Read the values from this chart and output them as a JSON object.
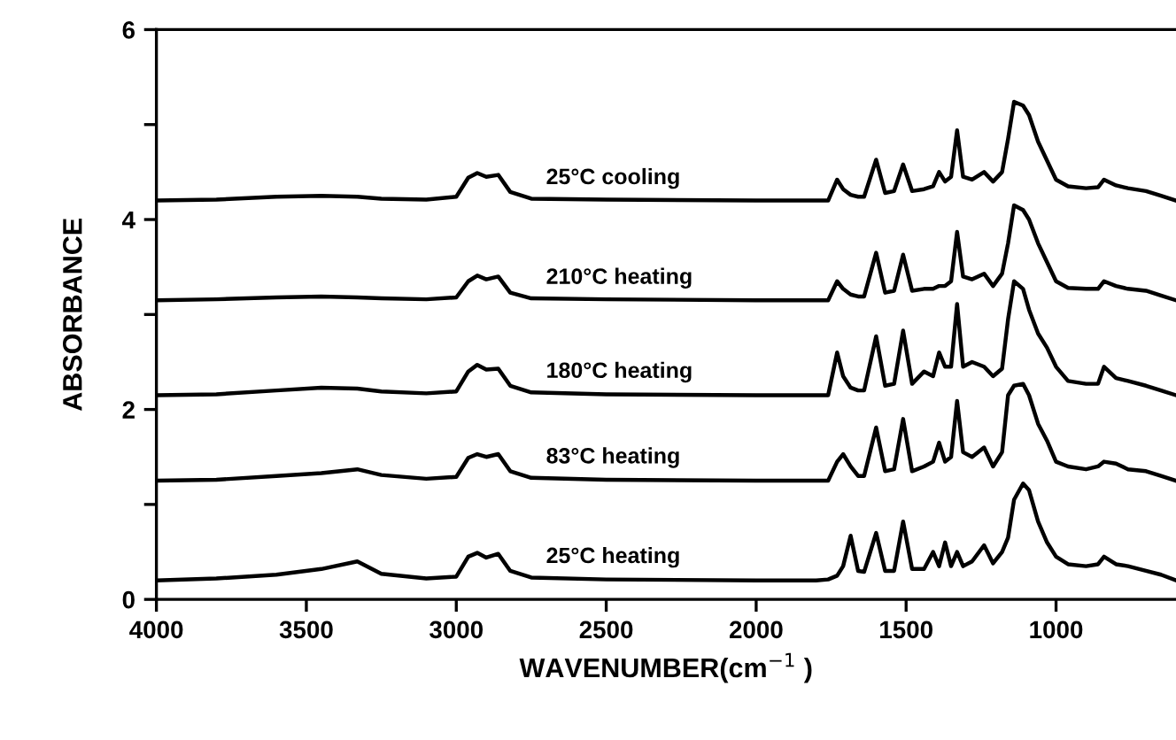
{
  "chart_data": {
    "type": "line",
    "xlabel": "WAVENUMBER(cm$^{−1}$ )",
    "ylabel": "ABSORBANCE",
    "xlim": [
      4000,
      600
    ],
    "ylim": [
      0,
      6
    ],
    "xticks": [
      4000,
      3500,
      3000,
      2500,
      2000,
      1500,
      1000
    ],
    "yticks": [
      0,
      {
        "value": 1,
        "label": null
      },
      2,
      {
        "value": 3,
        "label": null
      },
      4,
      {
        "value": 5,
        "label": null
      },
      6
    ],
    "grid": false,
    "line_style": "solid",
    "x": [
      4000,
      3800,
      3600,
      3450,
      3330,
      3250,
      3100,
      3000,
      2960,
      2930,
      2900,
      2860,
      2820,
      2750,
      2500,
      2000,
      1800,
      1760,
      1730,
      1710,
      1685,
      1660,
      1640,
      1600,
      1570,
      1540,
      1510,
      1480,
      1440,
      1410,
      1390,
      1370,
      1350,
      1330,
      1310,
      1280,
      1240,
      1210,
      1180,
      1160,
      1140,
      1110,
      1090,
      1060,
      1030,
      1000,
      960,
      900,
      860,
      840,
      800,
      760,
      700,
      650,
      600
    ],
    "series": [
      {
        "name": "25°C cooling",
        "color": "#000000",
        "values": [
          4.2,
          4.21,
          4.24,
          4.25,
          4.24,
          4.22,
          4.21,
          4.24,
          4.44,
          4.49,
          4.45,
          4.47,
          4.29,
          4.22,
          4.21,
          4.2,
          4.2,
          4.2,
          4.42,
          4.32,
          4.26,
          4.24,
          4.24,
          4.63,
          4.28,
          4.3,
          4.58,
          4.3,
          4.32,
          4.35,
          4.5,
          4.4,
          4.45,
          4.94,
          4.45,
          4.42,
          4.5,
          4.4,
          4.5,
          4.85,
          5.24,
          5.2,
          5.1,
          4.82,
          4.62,
          4.42,
          4.35,
          4.33,
          4.34,
          4.42,
          4.36,
          4.33,
          4.3,
          4.25,
          4.2
        ]
      },
      {
        "name": "210°C heating",
        "color": "#000000",
        "values": [
          3.15,
          3.16,
          3.18,
          3.19,
          3.18,
          3.17,
          3.16,
          3.18,
          3.35,
          3.41,
          3.37,
          3.4,
          3.23,
          3.17,
          3.16,
          3.15,
          3.15,
          3.15,
          3.35,
          3.27,
          3.21,
          3.19,
          3.19,
          3.65,
          3.23,
          3.25,
          3.63,
          3.25,
          3.27,
          3.27,
          3.3,
          3.3,
          3.35,
          3.87,
          3.4,
          3.37,
          3.43,
          3.3,
          3.43,
          3.75,
          4.15,
          4.1,
          4.0,
          3.75,
          3.55,
          3.35,
          3.28,
          3.27,
          3.27,
          3.35,
          3.3,
          3.27,
          3.25,
          3.2,
          3.15
        ]
      },
      {
        "name": "180°C heating",
        "color": "#000000",
        "values": [
          2.15,
          2.16,
          2.2,
          2.23,
          2.22,
          2.19,
          2.17,
          2.19,
          2.4,
          2.47,
          2.42,
          2.43,
          2.25,
          2.18,
          2.16,
          2.15,
          2.15,
          2.15,
          2.6,
          2.35,
          2.23,
          2.2,
          2.2,
          2.77,
          2.25,
          2.27,
          2.83,
          2.27,
          2.4,
          2.35,
          2.6,
          2.45,
          2.45,
          3.11,
          2.45,
          2.5,
          2.45,
          2.35,
          2.43,
          2.95,
          3.35,
          3.27,
          3.05,
          2.8,
          2.65,
          2.45,
          2.3,
          2.27,
          2.27,
          2.45,
          2.33,
          2.3,
          2.25,
          2.2,
          2.15
        ]
      },
      {
        "name": "83°C heating",
        "color": "#000000",
        "values": [
          1.25,
          1.26,
          1.3,
          1.33,
          1.37,
          1.31,
          1.27,
          1.29,
          1.49,
          1.53,
          1.5,
          1.53,
          1.35,
          1.28,
          1.26,
          1.25,
          1.25,
          1.25,
          1.45,
          1.53,
          1.4,
          1.3,
          1.3,
          1.81,
          1.35,
          1.37,
          1.9,
          1.35,
          1.4,
          1.45,
          1.65,
          1.45,
          1.5,
          2.09,
          1.55,
          1.5,
          1.6,
          1.4,
          1.55,
          2.15,
          2.25,
          2.27,
          2.15,
          1.85,
          1.67,
          1.45,
          1.4,
          1.37,
          1.4,
          1.45,
          1.43,
          1.37,
          1.35,
          1.3,
          1.25
        ]
      },
      {
        "name": "25°C heating",
        "color": "#000000",
        "values": [
          0.2,
          0.22,
          0.26,
          0.32,
          0.4,
          0.27,
          0.22,
          0.24,
          0.45,
          0.49,
          0.44,
          0.48,
          0.3,
          0.23,
          0.21,
          0.2,
          0.2,
          0.21,
          0.25,
          0.35,
          0.67,
          0.3,
          0.29,
          0.7,
          0.3,
          0.3,
          0.82,
          0.32,
          0.32,
          0.5,
          0.35,
          0.6,
          0.35,
          0.5,
          0.35,
          0.4,
          0.57,
          0.38,
          0.5,
          0.65,
          1.05,
          1.22,
          1.15,
          0.82,
          0.6,
          0.45,
          0.37,
          0.35,
          0.37,
          0.45,
          0.37,
          0.35,
          0.3,
          0.26,
          0.2
        ]
      }
    ]
  }
}
